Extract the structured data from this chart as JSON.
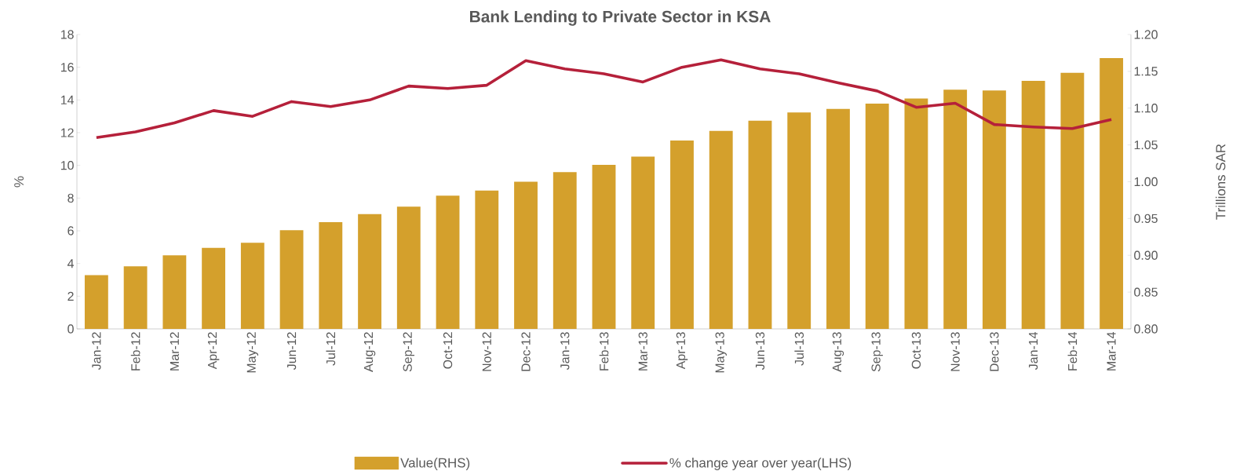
{
  "chart_data": {
    "type": "bar",
    "title": "Bank Lending to Private Sector in KSA",
    "ylabel": "%",
    "y2label": "Trillions SAR",
    "categories": [
      "Jan-12",
      "Feb-12",
      "Mar-12",
      "Apr-12",
      "May-12",
      "Jun-12",
      "Jul-12",
      "Aug-12",
      "Sep-12",
      "Oct-12",
      "Nov-12",
      "Dec-12",
      "Jan-13",
      "Feb-13",
      "Mar-13",
      "Apr-13",
      "May-13",
      "Jun-13",
      "Jul-13",
      "Aug-13",
      "Sep-13",
      "Oct-13",
      "Nov-13",
      "Dec-13",
      "Jan-14",
      "Feb-14",
      "Mar-14"
    ],
    "series": [
      {
        "name": "Value(RHS)",
        "axis": "y2",
        "color": "#d4a02c",
        "values": [
          0.873,
          0.885,
          0.9,
          0.91,
          0.917,
          0.934,
          0.945,
          0.956,
          0.966,
          0.981,
          0.988,
          1.0,
          1.013,
          1.023,
          1.034,
          1.056,
          1.069,
          1.083,
          1.094,
          1.099,
          1.106,
          1.113,
          1.125,
          1.124,
          1.137,
          1.148,
          1.168
        ]
      },
      {
        "name": "% change year over year(LHS)",
        "type": "line",
        "axis": "y",
        "color": "#b5203a",
        "values": [
          11.7,
          12.05,
          12.6,
          13.35,
          13.0,
          13.9,
          13.6,
          14.0,
          14.85,
          14.7,
          14.9,
          16.4,
          15.9,
          15.6,
          15.1,
          16.0,
          16.45,
          15.9,
          15.6,
          15.05,
          14.55,
          13.55,
          13.8,
          12.5,
          12.35,
          12.25,
          12.8
        ]
      }
    ],
    "ylim": [
      0,
      18
    ],
    "yticks": [
      0,
      2,
      4,
      6,
      8,
      10,
      12,
      14,
      16,
      18
    ],
    "y2lim": [
      0.8,
      1.2
    ],
    "y2ticks": [
      {
        "value": 0.8,
        "label": "0.80"
      },
      {
        "value": 0.85,
        "label": "0.85"
      },
      {
        "value": 0.9,
        "label": "0.90"
      },
      {
        "value": 0.95,
        "label": "0.95"
      },
      {
        "value": 1.0,
        "label": "1.00"
      },
      {
        "value": 1.05,
        "label": "1.05"
      },
      {
        "value": 1.1,
        "label": "1.10"
      },
      {
        "value": 1.15,
        "label": "1.15"
      },
      {
        "value": 1.2,
        "label": "1.20"
      }
    ],
    "legend": "bottom",
    "grid": false
  }
}
